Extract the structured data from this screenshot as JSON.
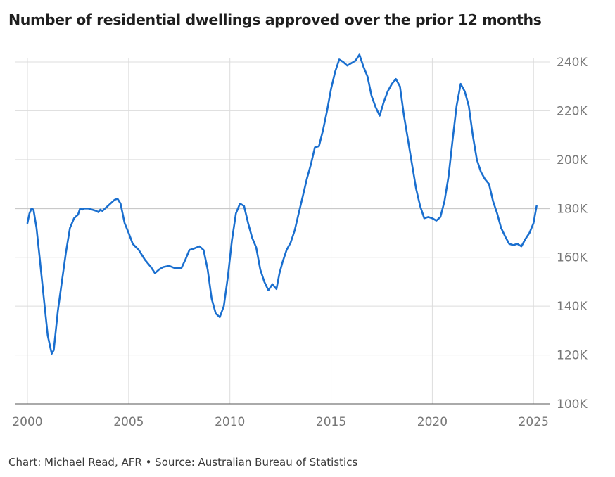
{
  "header": {
    "title": "Number of residential dwellings approved over the prior 12 months"
  },
  "footer": {
    "source": "Chart: Michael Read, AFR • Source: Australian Bureau of Statistics"
  },
  "colors": {
    "line": "#1a6fcf",
    "grid": "#dcdcdc",
    "tick": "#777777"
  },
  "chart_data": {
    "type": "line",
    "title": "Number of residential dwellings approved over the prior 12 months",
    "xlabel": "",
    "ylabel": "",
    "xlim": [
      2000,
      2025.2
    ],
    "ylim": [
      100000,
      240000
    ],
    "grid": true,
    "x_ticks": [
      2000,
      2005,
      2010,
      2015,
      2020,
      2025
    ],
    "x_tick_labels": [
      "2000",
      "2005",
      "2010",
      "2015",
      "2020",
      "2025"
    ],
    "y_ticks": [
      100000,
      120000,
      140000,
      160000,
      180000,
      200000,
      220000,
      240000
    ],
    "y_tick_labels": [
      "100K",
      "120K",
      "140K",
      "160K",
      "180K",
      "200K",
      "220K",
      "240K"
    ],
    "series": [
      {
        "x": [
          2000.0,
          2000.1,
          2000.2,
          2000.3,
          2000.45,
          2000.6,
          2000.8,
          2001.0,
          2001.2,
          2001.3,
          2001.4,
          2001.5,
          2001.7,
          2001.9,
          2002.1,
          2002.3,
          2002.5,
          2002.6,
          2002.7,
          2002.8,
          2003.0,
          2003.2,
          2003.4,
          2003.5,
          2003.6,
          2003.7,
          2003.9,
          2004.1,
          2004.3,
          2004.45,
          2004.6,
          2004.8,
          2005.0,
          2005.2,
          2005.5,
          2005.8,
          2006.1,
          2006.3,
          2006.5,
          2006.7,
          2007.0,
          2007.3,
          2007.6,
          2007.8,
          2008.0,
          2008.2,
          2008.5,
          2008.7,
          2008.9,
          2009.1,
          2009.3,
          2009.5,
          2009.7,
          2009.9,
          2010.1,
          2010.3,
          2010.5,
          2010.7,
          2010.9,
          2011.1,
          2011.3,
          2011.5,
          2011.7,
          2011.9,
          2012.1,
          2012.3,
          2012.45,
          2012.6,
          2012.8,
          2013.0,
          2013.2,
          2013.4,
          2013.6,
          2013.8,
          2014.0,
          2014.2,
          2014.4,
          2014.6,
          2014.8,
          2015.0,
          2015.2,
          2015.4,
          2015.6,
          2015.8,
          2016.0,
          2016.2,
          2016.4,
          2016.6,
          2016.8,
          2017.0,
          2017.2,
          2017.4,
          2017.6,
          2017.8,
          2018.0,
          2018.2,
          2018.4,
          2018.6,
          2018.8,
          2019.0,
          2019.2,
          2019.4,
          2019.6,
          2019.8,
          2020.0,
          2020.2,
          2020.4,
          2020.6,
          2020.8,
          2021.0,
          2021.2,
          2021.4,
          2021.6,
          2021.8,
          2022.0,
          2022.2,
          2022.4,
          2022.6,
          2022.8,
          2023.0,
          2023.2,
          2023.4,
          2023.6,
          2023.8,
          2024.0,
          2024.2,
          2024.4,
          2024.6,
          2024.8,
          2025.0,
          2025.15
        ],
        "values": [
          174000,
          178000,
          180000,
          179500,
          172000,
          160000,
          144000,
          128000,
          120500,
          122000,
          130000,
          138000,
          150000,
          162000,
          172000,
          176000,
          177500,
          180000,
          179500,
          180000,
          180000,
          179500,
          179000,
          178500,
          179500,
          179000,
          180500,
          182000,
          183500,
          184000,
          182000,
          174000,
          170000,
          165500,
          163000,
          159000,
          156000,
          153500,
          155000,
          156000,
          156500,
          155500,
          155500,
          159000,
          163000,
          163500,
          164500,
          163000,
          155000,
          143000,
          137000,
          135500,
          140000,
          152000,
          167000,
          178000,
          182000,
          181000,
          174000,
          168000,
          164000,
          155000,
          150000,
          146500,
          149000,
          147000,
          153500,
          158000,
          163000,
          166000,
          171000,
          178000,
          185000,
          192000,
          198000,
          205000,
          205500,
          212000,
          220000,
          229000,
          236000,
          241000,
          240000,
          238500,
          239500,
          240500,
          243000,
          238000,
          234000,
          226000,
          221500,
          218000,
          223500,
          228000,
          231000,
          233000,
          230000,
          218000,
          208000,
          198000,
          188000,
          181000,
          176000,
          176500,
          176000,
          175000,
          176500,
          183000,
          193000,
          208000,
          222000,
          231000,
          228000,
          222000,
          210000,
          200000,
          195000,
          192000,
          190000,
          183000,
          178000,
          172000,
          168500,
          165500,
          165000,
          165500,
          164500,
          167500,
          170000,
          174000,
          181000
        ]
      }
    ]
  }
}
